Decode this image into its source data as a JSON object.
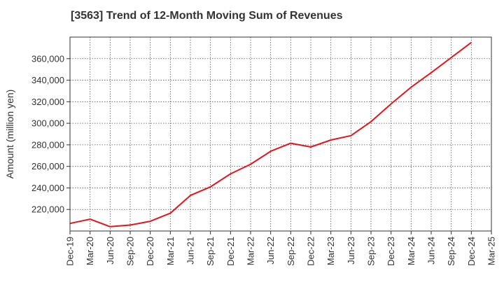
{
  "chart_data": {
    "type": "line",
    "title": "[3563]  Trend of 12-Month Moving Sum of Revenues",
    "xlabel": "",
    "ylabel": "Amount (million yen)",
    "x": [
      "Dec-19",
      "Mar-20",
      "Jun-20",
      "Sep-20",
      "Dec-20",
      "Mar-21",
      "Jun-21",
      "Sep-21",
      "Dec-21",
      "Mar-22",
      "Jun-22",
      "Sep-22",
      "Dec-22",
      "Mar-23",
      "Jun-23",
      "Sep-23",
      "Dec-23",
      "Mar-24",
      "Jun-24",
      "Sep-24",
      "Dec-24",
      "Mar-25"
    ],
    "series": [
      {
        "values": [
          207000,
          211000,
          204000,
          205500,
          209000,
          216500,
          233000,
          241000,
          253000,
          262000,
          274000,
          281500,
          278000,
          284500,
          288500,
          301500,
          318000,
          333500,
          347000,
          361000,
          375000,
          null
        ],
        "color": "#e8141b"
      }
    ],
    "yticks": [
      220000,
      240000,
      260000,
      280000,
      300000,
      320000,
      340000,
      360000
    ],
    "ytick_labels": [
      "220,000",
      "240,000",
      "260,000",
      "280,000",
      "300,000",
      "320,000",
      "340,000",
      "360,000"
    ],
    "ylim": [
      200000,
      380000
    ],
    "grid": true
  }
}
